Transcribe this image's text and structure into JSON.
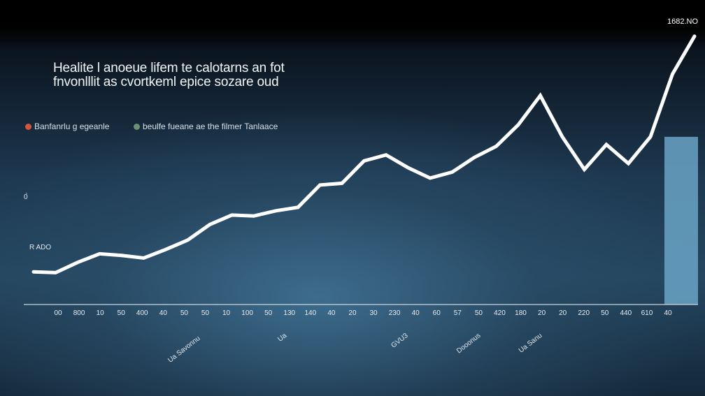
{
  "chart_data": {
    "type": "line",
    "title_line1": "Healite l anoeue lifem te calotarns an fot",
    "title_line2": "fnvonlllit as cvortkeml epice sozare oud",
    "legend": [
      {
        "label": "Banfanrlu g egeanle",
        "color": "#d4553f"
      },
      {
        "label": "beulfe fueane ae the filmer Tanlaace",
        "color": "#6d8f78"
      }
    ],
    "ytick_labels": [
      "0̀",
      "R ADO"
    ],
    "peak_label": "1682.NO",
    "x_tick_labels": [
      "00",
      "800",
      "10",
      "50",
      "400",
      "40",
      "50",
      "50",
      "10",
      "100",
      "50",
      "130",
      "140",
      "40",
      "20",
      "30",
      "230",
      "40",
      "60",
      "57",
      "50",
      "420",
      "180",
      "20",
      "20",
      "220",
      "50",
      "440",
      "610",
      "40"
    ],
    "category_labels": [
      "Ua Savonnu",
      "Ua",
      "GVU3",
      "Dooonus",
      "Ua Sanu"
    ],
    "series": [
      {
        "values": [
          38,
          37,
          49,
          59,
          57,
          54,
          64,
          75,
          93,
          104,
          103,
          109,
          113,
          139,
          141,
          167,
          174,
          159,
          147,
          154,
          171,
          184,
          209,
          243,
          195,
          157,
          186,
          164,
          195,
          268,
          312
        ]
      }
    ],
    "ylim": [
      0,
      320
    ],
    "highlight_bar": {
      "value": 195
    },
    "colors": {
      "line": "#ffffff",
      "bar": "#6aa3c6",
      "axis": "#c9d4dc"
    }
  }
}
